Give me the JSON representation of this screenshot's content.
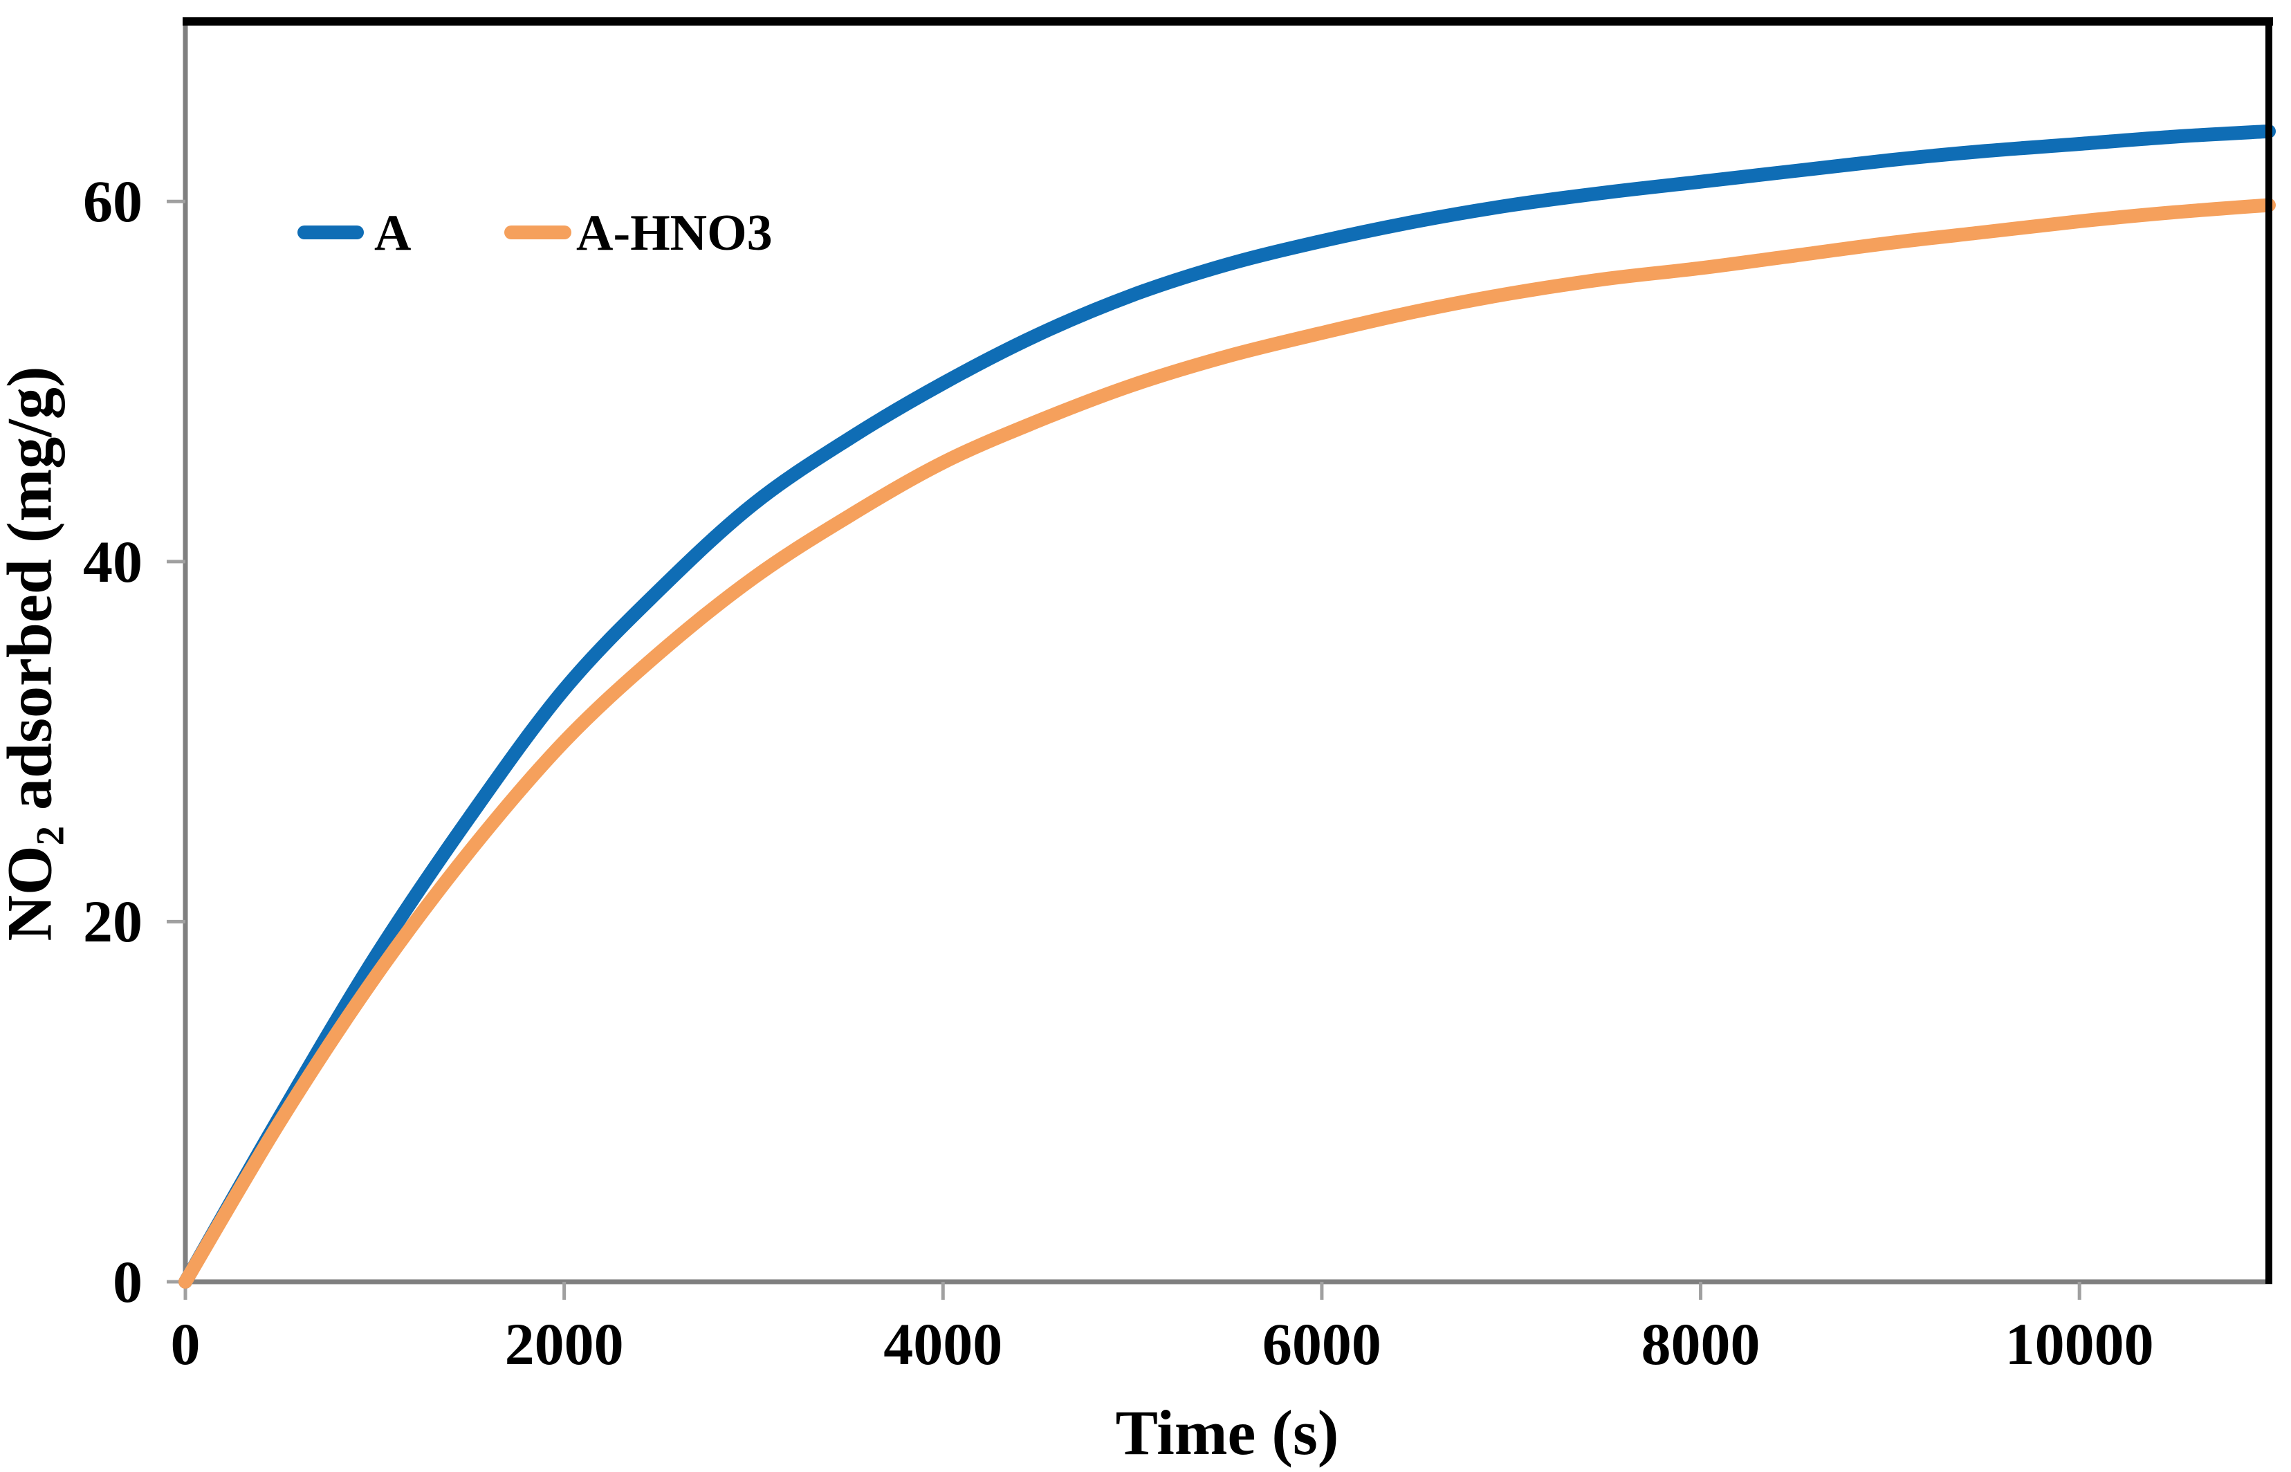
{
  "figure": {
    "background": "#ffffff"
  },
  "chart_data": {
    "type": "line",
    "title": "",
    "xlabel": "Time (s)",
    "ylabel": {
      "pre": "NO",
      "sub": "2",
      "post": " adsorbed (mg/g)"
    },
    "xlim": [
      0,
      11000
    ],
    "ylim": [
      0,
      70
    ],
    "x_ticks": [
      0,
      2000,
      4000,
      6000,
      8000,
      10000
    ],
    "y_ticks": [
      0,
      20,
      40,
      60
    ],
    "grid": false,
    "legend_position": "top-left-inside",
    "axis_color": "#7f7f7f",
    "tick_color": "#a0a0a0",
    "frame_color": "#000000",
    "line_width": 20,
    "x": [
      0,
      500,
      1000,
      1500,
      2000,
      2500,
      3000,
      3500,
      4000,
      4500,
      5000,
      5500,
      6000,
      6500,
      7000,
      7500,
      8000,
      8500,
      9000,
      9500,
      10000,
      10500,
      11000
    ],
    "series": [
      {
        "name": "A",
        "color": "#0f6db5",
        "values": [
          0,
          9.2,
          18.0,
          25.8,
          32.9,
          38.4,
          43.2,
          46.8,
          49.9,
          52.6,
          54.8,
          56.5,
          57.8,
          58.9,
          59.8,
          60.5,
          61.1,
          61.7,
          62.3,
          62.8,
          63.2,
          63.6,
          63.9
        ]
      },
      {
        "name": "A-HNO3",
        "color": "#f5a05c",
        "values": [
          0,
          8.9,
          16.9,
          23.9,
          30.0,
          34.9,
          39.1,
          42.5,
          45.5,
          47.8,
          49.8,
          51.4,
          52.7,
          53.9,
          54.9,
          55.7,
          56.3,
          57.0,
          57.7,
          58.3,
          58.9,
          59.4,
          59.8
        ]
      }
    ]
  }
}
